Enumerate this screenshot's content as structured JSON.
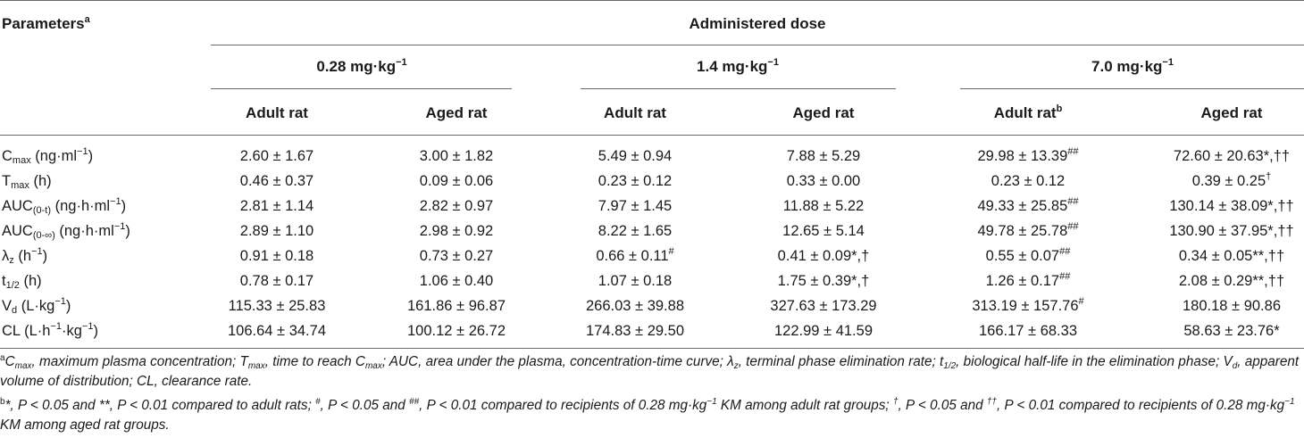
{
  "table": {
    "header": {
      "parameters": "Parameters",
      "parameters_sup": "a",
      "administered_dose": "Administered dose",
      "dose_groups": [
        "0.28 mg·kg",
        "1.4 mg·kg",
        "7.0 mg·kg"
      ],
      "dose_exponent": "−1",
      "columns": [
        "Adult rat",
        "Aged rat",
        "Adult rat",
        "Aged rat",
        "Adult rat",
        "Aged rat"
      ],
      "adult_rat_high_dose_sup": "b"
    },
    "rows": [
      {
        "param": "C",
        "param_sub": "max",
        "unit": " (ng·ml",
        "unit_sup": "−1",
        "unit_end": ")",
        "cells": [
          {
            "v": "2.60 ± 1.67",
            "s": ""
          },
          {
            "v": "3.00 ± 1.82",
            "s": ""
          },
          {
            "v": "5.49 ± 0.94",
            "s": ""
          },
          {
            "v": "7.88 ± 5.29",
            "s": ""
          },
          {
            "v": "29.98 ± 13.39",
            "s": "##"
          },
          {
            "v": "72.60 ± 20.63*,††",
            "s": ""
          }
        ]
      },
      {
        "param": "T",
        "param_sub": "max",
        "unit": " (h)",
        "unit_sup": "",
        "unit_end": "",
        "cells": [
          {
            "v": "0.46 ± 0.37",
            "s": ""
          },
          {
            "v": "0.09 ± 0.06",
            "s": ""
          },
          {
            "v": "0.23 ± 0.12",
            "s": ""
          },
          {
            "v": "0.33 ± 0.00",
            "s": ""
          },
          {
            "v": "0.23 ± 0.12",
            "s": ""
          },
          {
            "v": "0.39 ± 0.25",
            "s": "†"
          }
        ]
      },
      {
        "param": "AUC",
        "param_sub": "(0-t)",
        "unit": " (ng·h·ml",
        "unit_sup": "−1",
        "unit_end": ")",
        "cells": [
          {
            "v": "2.81 ± 1.14",
            "s": ""
          },
          {
            "v": "2.82 ± 0.97",
            "s": ""
          },
          {
            "v": "7.97 ± 1.45",
            "s": ""
          },
          {
            "v": "11.88 ± 5.22",
            "s": ""
          },
          {
            "v": "49.33 ± 25.85",
            "s": "##"
          },
          {
            "v": "130.14 ± 38.09*,††",
            "s": ""
          }
        ]
      },
      {
        "param": "AUC",
        "param_sub": "(0-∞)",
        "unit": " (ng·h·ml",
        "unit_sup": "−1",
        "unit_end": ")",
        "cells": [
          {
            "v": "2.89 ± 1.10",
            "s": ""
          },
          {
            "v": "2.98 ± 0.92",
            "s": ""
          },
          {
            "v": "8.22 ± 1.65",
            "s": ""
          },
          {
            "v": "12.65 ± 5.14",
            "s": ""
          },
          {
            "v": "49.78 ± 25.78",
            "s": "##"
          },
          {
            "v": "130.90 ± 37.95*,††",
            "s": ""
          }
        ]
      },
      {
        "param": "λ",
        "param_sub": "z",
        "unit": " (h",
        "unit_sup": "−1",
        "unit_end": ")",
        "cells": [
          {
            "v": "0.91 ± 0.18",
            "s": ""
          },
          {
            "v": "0.73 ± 0.27",
            "s": ""
          },
          {
            "v": "0.66 ± 0.11",
            "s": "#"
          },
          {
            "v": "0.41 ± 0.09*,†",
            "s": ""
          },
          {
            "v": "0.55 ± 0.07",
            "s": "##"
          },
          {
            "v": "0.34 ± 0.05**,††",
            "s": ""
          }
        ]
      },
      {
        "param": "t",
        "param_sub": "1/2",
        "unit": " (h)",
        "unit_sup": "",
        "unit_end": "",
        "cells": [
          {
            "v": "0.78 ± 0.17",
            "s": ""
          },
          {
            "v": "1.06 ± 0.40",
            "s": ""
          },
          {
            "v": "1.07 ± 0.18",
            "s": ""
          },
          {
            "v": "1.75 ± 0.39*,†",
            "s": ""
          },
          {
            "v": "1.26 ± 0.17",
            "s": "##"
          },
          {
            "v": "2.08 ± 0.29**,††",
            "s": ""
          }
        ]
      },
      {
        "param": "V",
        "param_sub": "d",
        "unit": " (L·kg",
        "unit_sup": "−1",
        "unit_end": ")",
        "cells": [
          {
            "v": "115.33 ± 25.83",
            "s": ""
          },
          {
            "v": "161.86 ± 96.87",
            "s": ""
          },
          {
            "v": "266.03 ± 39.88",
            "s": ""
          },
          {
            "v": "327.63 ± 173.29",
            "s": ""
          },
          {
            "v": "313.19 ± 157.76",
            "s": "#"
          },
          {
            "v": "180.18 ± 90.86",
            "s": ""
          }
        ]
      },
      {
        "param": "CL",
        "param_sub": "",
        "unit": " (L·h",
        "unit_sup": "−1",
        "unit_end": "·kg",
        "unit_sup2": "−1",
        "unit_end2": ")",
        "cells": [
          {
            "v": "106.64 ± 34.74",
            "s": ""
          },
          {
            "v": "100.12 ± 26.72",
            "s": ""
          },
          {
            "v": "174.83 ± 29.50",
            "s": ""
          },
          {
            "v": "122.99 ± 41.59",
            "s": ""
          },
          {
            "v": "166.17 ± 68.33",
            "s": ""
          },
          {
            "v": "58.63 ± 23.76*",
            "s": ""
          }
        ]
      }
    ]
  },
  "footnotes": {
    "a_mark": "a",
    "a_t1": "C",
    "a_t1_sub": "max",
    "a_t2": ", maximum plasma concentration; T",
    "a_t2_sub": "max",
    "a_t3": ", time to reach C",
    "a_t3_sub": "max",
    "a_t4": "; AUC, area under the plasma, concentration-time curve; λ",
    "a_t4_sub": "z",
    "a_t5": ", terminal phase elimination rate; t",
    "a_t5_sub": "1/2",
    "a_t6": ", biological half-life in the elimination phase; V",
    "a_t6_sub": "d",
    "a_t7": ", apparent volume of distribution; CL, clearance rate.",
    "b_mark": "b",
    "b_t1": "*, P < 0.05 and **, P < 0.01 compared to adult rats; ",
    "b_m1": "#",
    "b_t2": ", P < 0.05 and ",
    "b_m2": "##",
    "b_t3": ", P < 0.01 compared to recipients of 0.28 mg·kg",
    "b_m3": "−1",
    "b_t4": " KM among adult rat groups; ",
    "b_m4": "†",
    "b_t5": ", P < 0.05 and ",
    "b_m5": "††",
    "b_t6": ", P < 0.01 compared to recipients of 0.28 mg·kg",
    "b_m6": "−1",
    "b_t7": " KM among aged rat groups."
  }
}
